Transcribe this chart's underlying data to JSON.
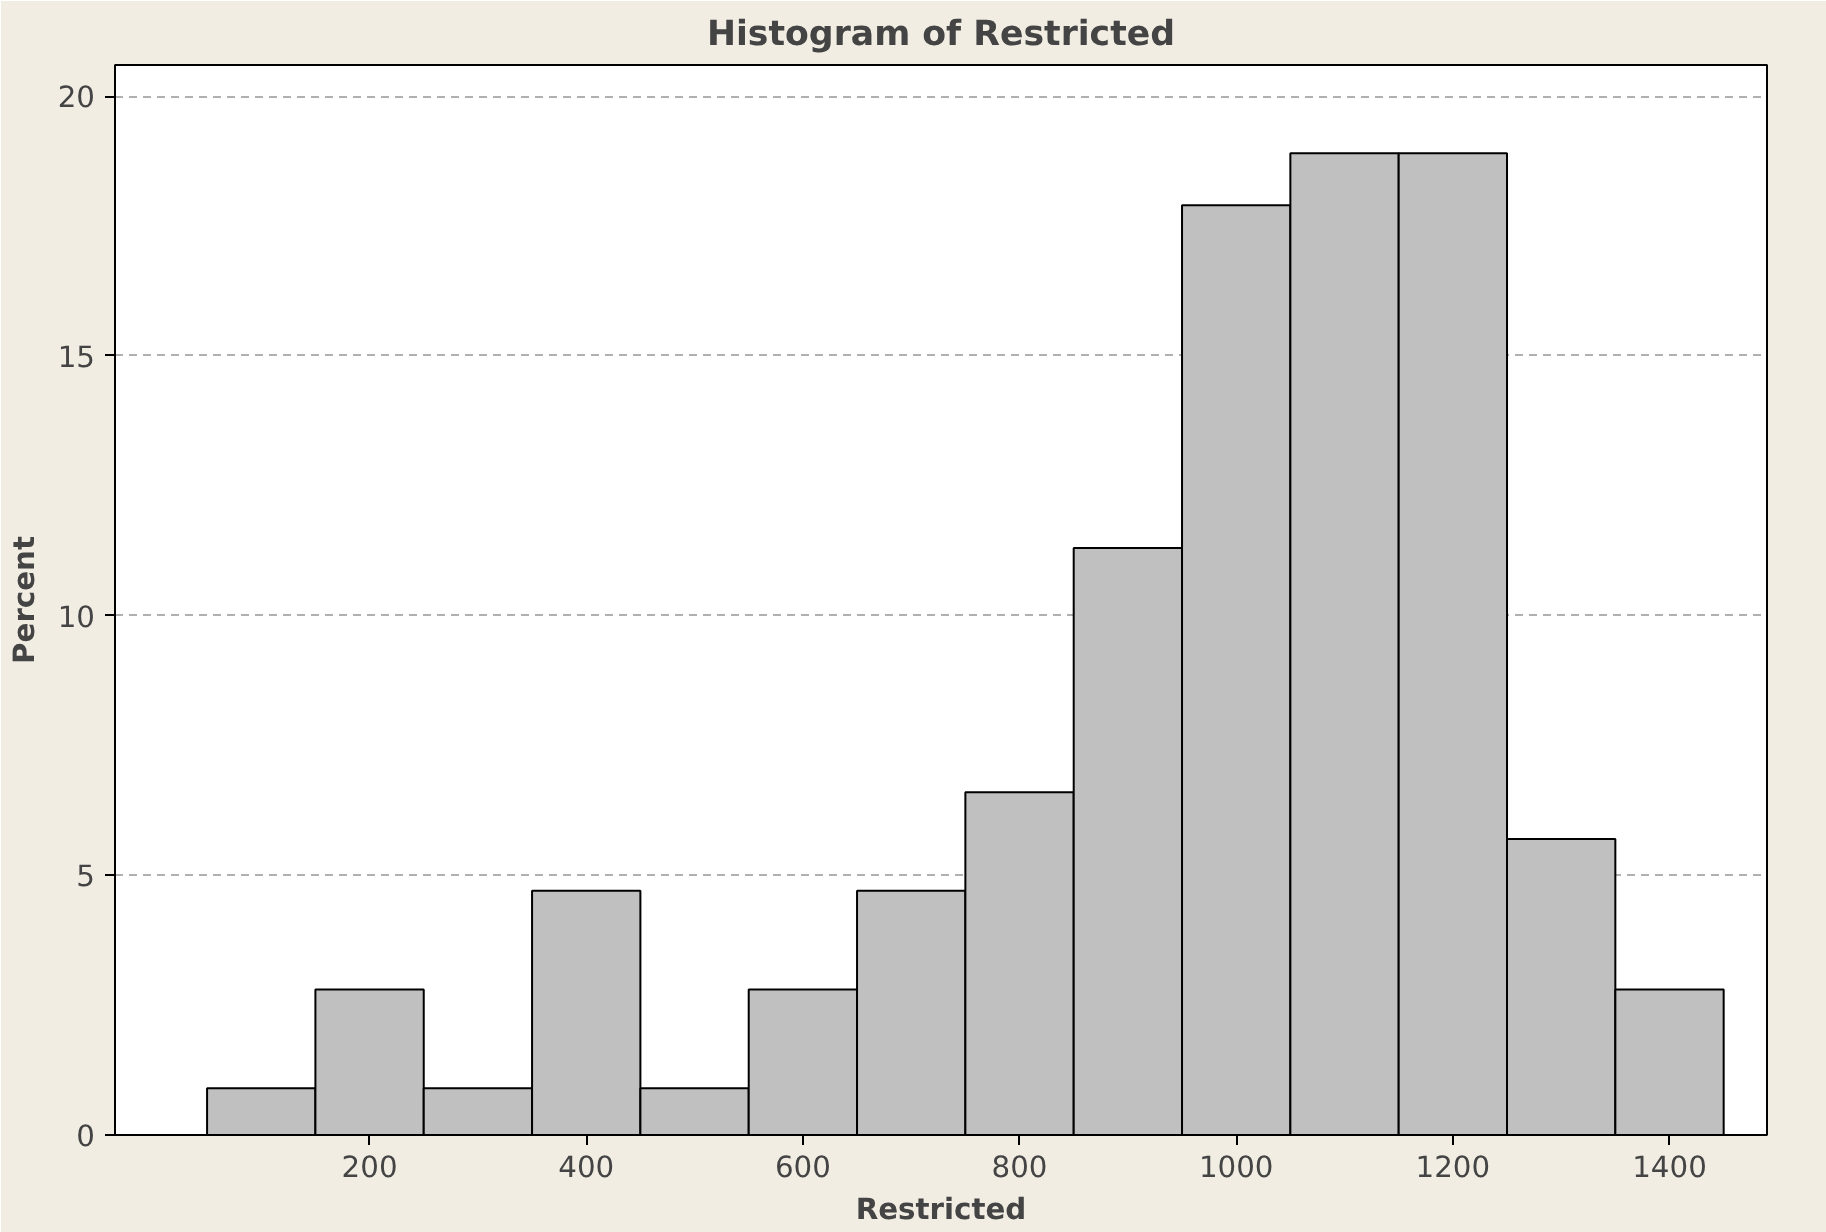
{
  "chart_data": {
    "type": "histogram",
    "title": "Histogram of Restricted",
    "xlabel": "Restricted",
    "ylabel": "Percent",
    "bins": [
      50,
      150,
      250,
      350,
      450,
      550,
      650,
      750,
      850,
      950,
      1050,
      1150,
      1250,
      1350,
      1450
    ],
    "values": [
      0.9,
      2.8,
      0.9,
      4.7,
      0.9,
      2.8,
      4.7,
      6.6,
      11.3,
      17.9,
      18.9,
      18.9,
      5.7,
      2.8
    ],
    "color": "#c0c0c0",
    "xlim": [
      -35,
      1490
    ],
    "xticks": [
      200,
      400,
      600,
      800,
      1000,
      1200,
      1400
    ],
    "ylim": [
      0,
      20.6
    ],
    "yticks": [
      0,
      5,
      10,
      15,
      20
    ],
    "grid": "y"
  }
}
